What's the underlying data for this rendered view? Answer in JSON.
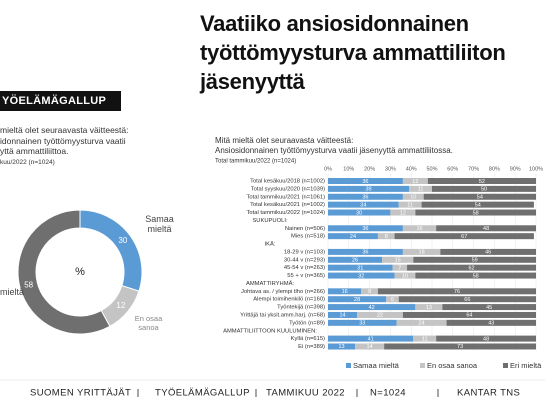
{
  "title": "Vaatiiko ansiosidonnainen työttömyysturva ammattiliiton jäsenyyttä",
  "banner": "YÖELÄMÄGALLUP",
  "left_text": [
    "mieltä olet seuraavasta väitteestä:",
    "idonnainen työttömyysturva vaatii",
    "yttä ammattiliittoa."
  ],
  "left_note": "kuu/2022 (n=1024)",
  "chart_data": [
    {
      "type": "pie",
      "center_label": "%",
      "categories": [
        "Samaa mieltä",
        "En osaa sanoa",
        "mieltä"
      ],
      "values": [
        30,
        12,
        58
      ],
      "colors": [
        "#5b9bd5",
        "#c4c4c4",
        "#6f6f6f"
      ]
    },
    {
      "type": "bar",
      "orientation": "horizontal",
      "stacked": true,
      "title": "Mitä mieltä olet seuraavasta väitteestä:",
      "subtitle": "Ansiosidonnainen työttömyysturva vaatii jäsenyyttä ammattiliitossa.",
      "note": "Total tammikuu/2022 (n=1024)",
      "categories": [
        "Total kesäkuu/2018 (n=1002)",
        "Total syyskuu/2020 (n=1039)",
        "Total tammikuu/2021 (n=1061)",
        "Total kesäkuu/2021 (n=1002)",
        "Total tammikuu/2022 (n=1024)",
        "SUKUPUOLI:",
        "Nainen (n=506)",
        "Mies (n=518)",
        "IKÄ:",
        "18-29 v (n=103)",
        "30-44 v (n=293)",
        "45-54 v (n=263)",
        "55 + v (n=365)",
        "AMMATTIRYHMÄ:",
        "Johtava as. / ylempi tlho (n=266)",
        "Alempi toimihenkilö (n=160)",
        "Työntekijä (n=398)",
        "Yrittäjä tai yksit.amm.harj. (n=68)",
        "Työtön (n=89)",
        "AMMATTILIITTOON KUULUMINEN:",
        "Kyllä (n=615)",
        "Ei (n=389)"
      ],
      "series": [
        {
          "name": "Samaa mieltä",
          "color": "#5b9bd5",
          "values": [
            36,
            39,
            36,
            34,
            30,
            null,
            36,
            24,
            null,
            36,
            26,
            31,
            32,
            null,
            16,
            28,
            42,
            14,
            33,
            null,
            41,
            13
          ]
        },
        {
          "name": "En osaa sanoa",
          "color": "#c4c4c4",
          "values": [
            12,
            11,
            10,
            11,
            12,
            null,
            16,
            8,
            null,
            18,
            15,
            7,
            10,
            null,
            8,
            6,
            13,
            22,
            24,
            null,
            11,
            14
          ]
        },
        {
          "name": "Eri mieltä",
          "color": "#6f6f6f",
          "values": [
            52,
            50,
            54,
            54,
            58,
            null,
            48,
            67,
            null,
            46,
            59,
            62,
            58,
            null,
            76,
            66,
            45,
            64,
            43,
            null,
            48,
            73
          ]
        }
      ],
      "xlim": [
        0,
        100
      ],
      "xticks": [
        {
          "value": 0,
          "label": "0%"
        },
        {
          "value": 10,
          "label": "10%"
        },
        {
          "value": 20,
          "label": "20%"
        },
        {
          "value": 30,
          "label": "30%"
        },
        {
          "value": 40,
          "label": "40%"
        },
        {
          "value": 50,
          "label": "50%"
        },
        {
          "value": 60,
          "label": "60%"
        },
        {
          "value": 70,
          "label": "70%"
        },
        {
          "value": 80,
          "label": "80%"
        },
        {
          "value": 90,
          "label": "90%"
        },
        {
          "value": 100,
          "label": "100%"
        }
      ],
      "grid": true
    }
  ],
  "footer": [
    "SUOMEN YRITTÄJÄT",
    "TYÖELÄMÄGALLUP",
    "TAMMIKUU 2022",
    "N=1024",
    "KANTAR TNS"
  ]
}
